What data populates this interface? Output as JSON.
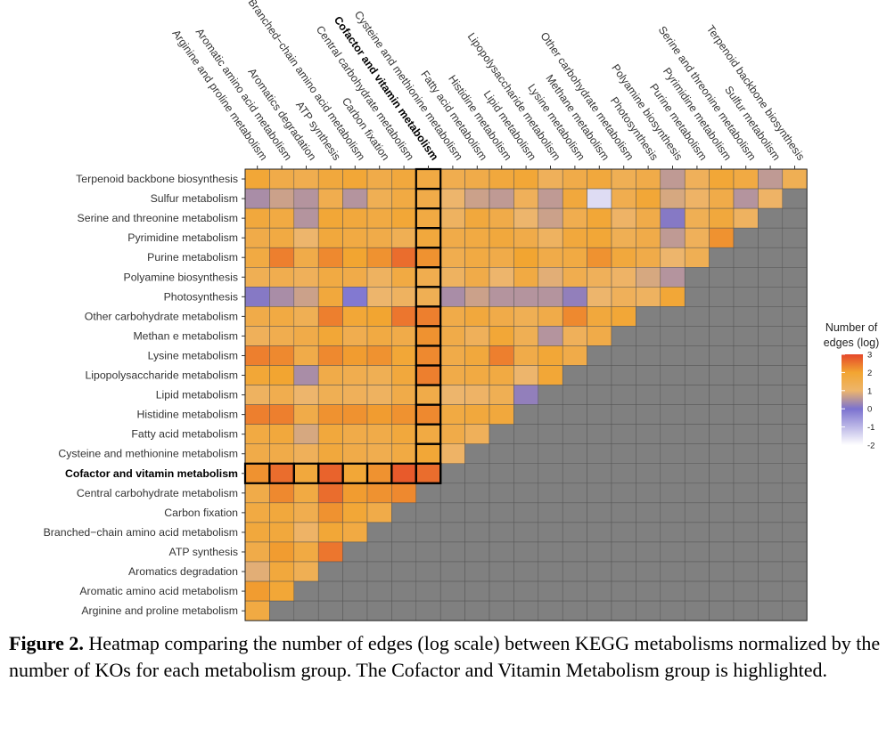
{
  "chart_data": {
    "type": "heatmap",
    "categories": [
      "Arginine and proline metabolism",
      "Aromatic amino acid metabolism",
      "Aromatics degradation",
      "ATP synthesis",
      "Branched−chain amino acid metabolism",
      "Carbon fixation",
      "Central carbohydrate metabolism",
      "Cofactor and vitamin metabolism",
      "Cysteine and methionine metabolism",
      "Fatty acid metabolism",
      "Histidine metabolism",
      "Lipid metabolism",
      "Lipopolysaccharide metabolism",
      "Lysine metabolism",
      "Methane metabolism",
      "Other carbohydrate metabolism",
      "Photosynthesis",
      "Polyamine biosynthesis",
      "Purine metabolism",
      "Pyrimidine metabolism",
      "Serine and threonine metabolism",
      "Sulfur metabolism",
      "Terpenoid backbone biosynthesis"
    ],
    "row_labels": [
      "Terpenoid backbone biosynthesis",
      "Sulfur metabolism",
      "Serine and threonine metabolism",
      "Pyrimidine metabolism",
      "Purine metabolism",
      "Polyamine biosynthesis",
      "Photosynthesis",
      "Other carbohydrate metabolism",
      "Methan e metabolism",
      "Lysine metabolism",
      "Lipopolysaccharide metabolism",
      "Lipid metabolism",
      "Histidine metabolism",
      "Fatty acid metabolism",
      "Cysteine and methionine metabolism",
      "Cofactor and vitamin metabolism",
      "Central carbohydrate metabolism",
      "Carbon fixation",
      "Branched−chain amino acid metabolism",
      "ATP synthesis",
      "Aromatics degradation",
      "Aromatic amino acid metabolism",
      "Arginine and proline metabolism"
    ],
    "highlight": "Cofactor and vitamin metabolism",
    "values": [
      [
        1.9,
        1.6,
        1.5,
        1.8,
        1.9,
        1.6,
        1.8,
        1.7,
        1.5,
        1.6,
        1.8,
        1.9,
        1.3,
        1.6,
        1.8,
        1.4,
        1.6,
        0.6,
        1.3,
        1.9,
        1.7,
        0.6,
        1.4
      ],
      [
        0.4,
        0.7,
        0.5,
        1.5,
        0.5,
        1.4,
        1.7,
        1.6,
        1.0,
        0.7,
        0.6,
        1.3,
        0.6,
        1.8,
        -1.5,
        1.5,
        1.9,
        0.8,
        1.1,
        1.6,
        0.5,
        1.1
      ],
      [
        1.8,
        1.7,
        0.5,
        1.9,
        1.8,
        1.7,
        1.9,
        1.7,
        1.2,
        1.8,
        1.6,
        1.0,
        0.7,
        1.5,
        1.9,
        1.1,
        1.6,
        0.1,
        1.4,
        1.8,
        1.2
      ],
      [
        1.6,
        1.7,
        1.0,
        1.8,
        1.7,
        1.6,
        1.4,
        1.8,
        1.6,
        1.7,
        1.8,
        1.6,
        1.2,
        1.8,
        1.9,
        1.4,
        1.6,
        0.6,
        1.3,
        2.2
      ],
      [
        1.7,
        2.4,
        1.6,
        2.3,
        2.0,
        2.2,
        2.6,
        2.2,
        1.5,
        1.7,
        1.6,
        2.0,
        1.6,
        1.7,
        2.2,
        1.8,
        1.6,
        1.0,
        1.4
      ],
      [
        1.4,
        1.5,
        1.3,
        1.7,
        1.6,
        1.2,
        1.7,
        1.5,
        1.2,
        1.6,
        1.0,
        1.7,
        0.9,
        1.5,
        1.3,
        1.1,
        0.8,
        0.5
      ],
      [
        0.1,
        0.4,
        0.7,
        1.8,
        -0.1,
        1.0,
        1.2,
        1.4,
        0.4,
        0.7,
        0.5,
        0.5,
        0.5,
        0.2,
        1.0,
        1.3,
        1.2,
        1.9
      ],
      [
        1.6,
        1.7,
        1.4,
        2.4,
        1.9,
        2.0,
        2.5,
        2.4,
        1.6,
        1.8,
        1.6,
        1.4,
        1.6,
        2.3,
        1.8,
        1.9
      ],
      [
        1.3,
        1.5,
        1.6,
        1.9,
        1.5,
        1.7,
        1.6,
        2.2,
        1.6,
        1.3,
        1.9,
        1.4,
        0.5,
        1.3,
        1.6
      ],
      [
        2.4,
        2.3,
        1.6,
        2.3,
        2.1,
        2.2,
        1.9,
        2.3,
        1.6,
        1.8,
        2.4,
        1.6,
        1.9,
        1.6
      ],
      [
        1.9,
        2.0,
        0.4,
        1.6,
        1.5,
        1.4,
        1.8,
        2.4,
        1.6,
        1.7,
        1.7,
        1.0,
        1.9
      ],
      [
        1.2,
        1.5,
        1.0,
        1.4,
        1.3,
        1.2,
        1.6,
        1.6,
        1.0,
        1.1,
        1.4,
        0.2
      ],
      [
        2.4,
        2.4,
        1.6,
        2.2,
        2.2,
        2.1,
        2.2,
        2.3,
        1.7,
        1.8,
        1.8
      ],
      [
        1.7,
        1.8,
        0.8,
        1.8,
        1.6,
        1.6,
        1.8,
        1.7,
        1.6,
        1.3
      ],
      [
        1.6,
        1.6,
        1.3,
        1.8,
        1.6,
        1.5,
        1.7,
        1.9,
        1.1
      ],
      [
        2.2,
        2.6,
        1.8,
        2.7,
        1.9,
        2.2,
        2.8,
        2.6
      ],
      [
        1.6,
        2.3,
        1.7,
        2.6,
        2.1,
        2.2,
        2.3
      ],
      [
        1.7,
        1.8,
        1.5,
        2.2,
        1.9,
        1.6
      ],
      [
        1.8,
        1.8,
        1.1,
        1.9,
        1.7
      ],
      [
        1.6,
        2.1,
        1.7,
        2.5
      ],
      [
        0.9,
        1.8,
        1.4
      ],
      [
        2.1,
        1.9
      ],
      [
        1.7
      ]
    ],
    "legend": {
      "title_line1": "Number of",
      "title_line2": "edges (log)",
      "ticks": [
        "3",
        "2",
        "1",
        "0",
        "-1",
        "-2"
      ],
      "range": [
        -2,
        3
      ]
    },
    "colors": {
      "missing": "#808080",
      "stops": [
        {
          "value": -2,
          "color": "#ffffff"
        },
        {
          "value": 0,
          "color": "#7b72cf"
        },
        {
          "value": 1,
          "color": "#edb56c"
        },
        {
          "value": 2,
          "color": "#f2a531"
        },
        {
          "value": 3,
          "color": "#e5472a"
        }
      ]
    }
  },
  "caption": {
    "label": "Figure 2.",
    "text": " Heatmap comparing the number of edges (log scale) between KEGG metabolisms normalized by the number of KOs for each metabolism group. The Cofactor and Vitamin Metabolism group is highlighted."
  }
}
